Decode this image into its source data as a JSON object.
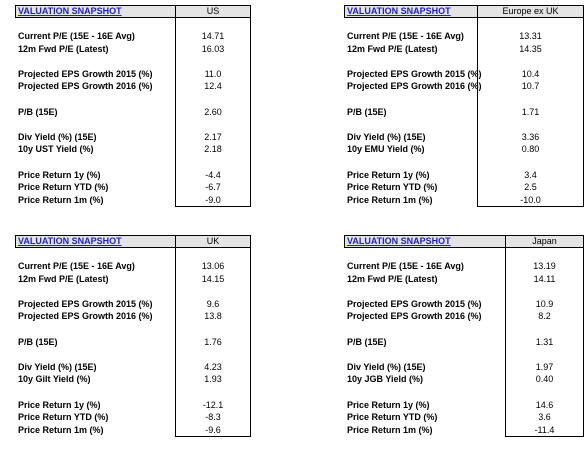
{
  "tables": [
    {
      "title": "VALUATION SNAPSHOT",
      "column": "US",
      "groups": [
        [
          {
            "label": "Current P/E (15E - 16E Avg)",
            "value": "14.71"
          },
          {
            "label": "12m Fwd P/E (Latest)",
            "value": "16.03"
          }
        ],
        [
          {
            "label": "Projected EPS Growth 2015 (%)",
            "value": "11.0"
          },
          {
            "label": "Projected EPS Growth 2016 (%)",
            "value": "12.4"
          }
        ],
        [
          {
            "label": "P/B (15E)",
            "value": "2.60"
          }
        ],
        [
          {
            "label": "Div Yield (%) (15E)",
            "value": "2.17"
          },
          {
            "label": "10y UST Yield (%)",
            "value": "2.18"
          }
        ],
        [
          {
            "label": "Price Return 1y (%)",
            "value": "-4.4"
          },
          {
            "label": "Price Return YTD (%)",
            "value": "-6.7"
          },
          {
            "label": "Price Return 1m (%)",
            "value": "-9.0"
          }
        ]
      ]
    },
    {
      "title": "VALUATION SNAPSHOT",
      "column": "Europe ex UK",
      "groups": [
        [
          {
            "label": "Current P/E (15E - 16E Avg)",
            "value": "13.31"
          },
          {
            "label": "12m Fwd P/E (Latest)",
            "value": "14.35"
          }
        ],
        [
          {
            "label": "Projected EPS Growth 2015 (%)",
            "value": "10.4"
          },
          {
            "label": "Projected EPS Growth 2016 (%)",
            "value": "10.7"
          }
        ],
        [
          {
            "label": "P/B (15E)",
            "value": "1.71"
          }
        ],
        [
          {
            "label": "Div Yield (%) (15E)",
            "value": "3.36"
          },
          {
            "label": "10y EMU Yield (%)",
            "value": "0.80"
          }
        ],
        [
          {
            "label": "Price Return 1y (%)",
            "value": "3.4"
          },
          {
            "label": "Price Return YTD (%)",
            "value": "2.5"
          },
          {
            "label": "Price Return 1m (%)",
            "value": "-10.0"
          }
        ]
      ]
    },
    {
      "title": "VALUATION SNAPSHOT",
      "column": "UK",
      "groups": [
        [
          {
            "label": "Current P/E (15E - 16E Avg)",
            "value": "13.06"
          },
          {
            "label": "12m Fwd P/E (Latest)",
            "value": "14.15"
          }
        ],
        [
          {
            "label": "Projected EPS Growth 2015 (%)",
            "value": "9.6"
          },
          {
            "label": "Projected EPS Growth 2016 (%)",
            "value": "13.8"
          }
        ],
        [
          {
            "label": "P/B (15E)",
            "value": "1.76"
          }
        ],
        [
          {
            "label": "Div Yield (%) (15E)",
            "value": "4.23"
          },
          {
            "label": "10y Gilt Yield (%)",
            "value": "1.93"
          }
        ],
        [
          {
            "label": "Price Return 1y (%)",
            "value": "-12.1"
          },
          {
            "label": "Price Return YTD (%)",
            "value": "-8.3"
          },
          {
            "label": "Price Return 1m (%)",
            "value": "-9.6"
          }
        ]
      ]
    },
    {
      "title": "VALUATION SNAPSHOT",
      "column": "Japan",
      "groups": [
        [
          {
            "label": "Current P/E (15E - 16E Avg)",
            "value": "13.19"
          },
          {
            "label": "12m Fwd P/E (Latest)",
            "value": "14.11"
          }
        ],
        [
          {
            "label": "Projected EPS Growth 2015 (%)",
            "value": "10.9"
          },
          {
            "label": "Projected EPS Growth 2016 (%)",
            "value": "8.2"
          }
        ],
        [
          {
            "label": "P/B (15E)",
            "value": "1.31"
          }
        ],
        [
          {
            "label": "Div Yield (%) (15E)",
            "value": "1.97"
          },
          {
            "label": "10y JGB Yield (%)",
            "value": "0.40"
          }
        ],
        [
          {
            "label": "Price Return 1y (%)",
            "value": "14.6"
          },
          {
            "label": "Price Return YTD (%)",
            "value": "3.6"
          },
          {
            "label": "Price Return 1m (%)",
            "value": "-11.4"
          }
        ]
      ]
    }
  ]
}
